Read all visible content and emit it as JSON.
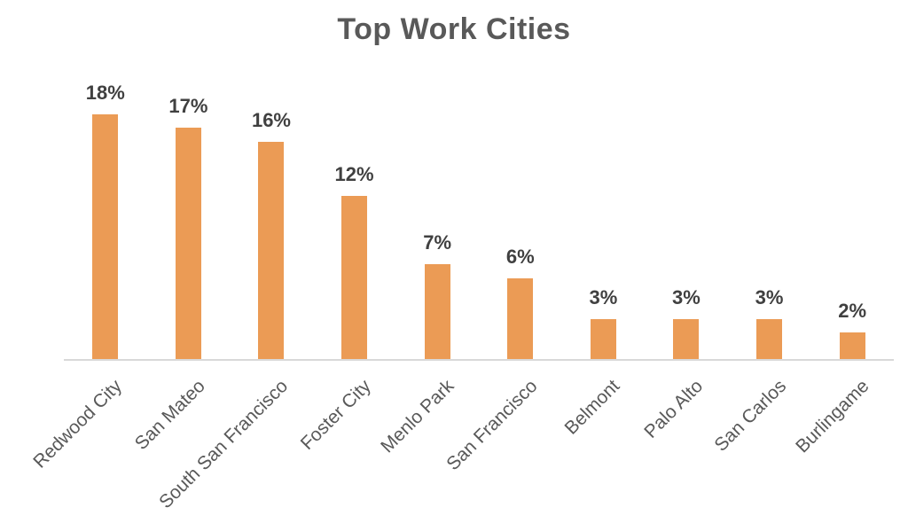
{
  "chart_data": {
    "type": "bar",
    "title": "Top Work Cities",
    "categories": [
      "Redwood City",
      "San Mateo",
      "South San Francisco",
      "Foster City",
      "Menlo Park",
      "San Francisco",
      "Belmont",
      "Palo Alto",
      "San Carlos",
      "Burlingame"
    ],
    "values": [
      18,
      17,
      16,
      12,
      7,
      6,
      3,
      3,
      3,
      2
    ],
    "data_labels": [
      "18%",
      "17%",
      "16%",
      "12%",
      "7%",
      "6%",
      "3%",
      "3%",
      "3%",
      "2%"
    ],
    "unit": "%",
    "xlabel": "",
    "ylabel": "",
    "ylim": [
      0,
      20
    ],
    "grid": false,
    "legend": false,
    "x_label_rotation_deg": -45,
    "bar_color": "#EB9B55",
    "title_color": "#595959",
    "data_label_color": "#404040",
    "axis_label_color": "#595959",
    "axis_line_color": "#D9D9D9"
  }
}
